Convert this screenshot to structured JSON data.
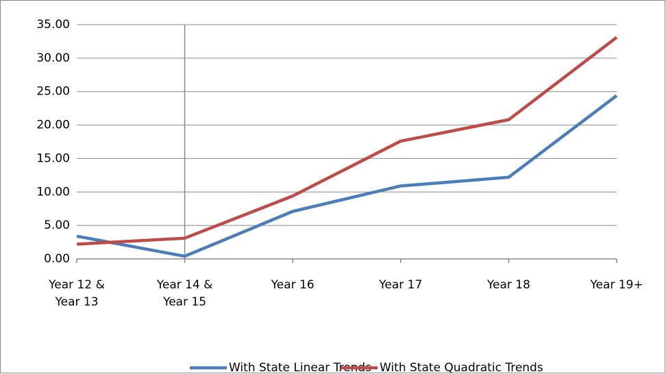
{
  "chart_data": {
    "type": "line",
    "categories": [
      "Year 12 & Year 13",
      "Year 14 & Year 15",
      "Year 16",
      "Year 17",
      "Year 18",
      "Year 19+"
    ],
    "series": [
      {
        "name": "With State Linear Trends",
        "color": "#4a7ebb",
        "values": [
          3.4,
          0.4,
          7.1,
          10.9,
          12.2,
          24.4
        ]
      },
      {
        "name": "With State Quadratic Trends",
        "color": "#be4b48",
        "values": [
          2.2,
          3.1,
          9.4,
          17.6,
          20.8,
          33.1
        ]
      }
    ],
    "ylim": [
      0,
      35
    ],
    "yticks": [
      {
        "value": 0,
        "label": "0.00"
      },
      {
        "value": 5,
        "label": "5.00"
      },
      {
        "value": 10,
        "label": "10.00"
      },
      {
        "value": 15,
        "label": "15.00"
      },
      {
        "value": 20,
        "label": "20.00"
      },
      {
        "value": 25,
        "label": "25.00"
      },
      {
        "value": 30,
        "label": "30.00"
      },
      {
        "value": 35,
        "label": "35.00"
      }
    ],
    "grid": true,
    "legend": "bottom"
  }
}
